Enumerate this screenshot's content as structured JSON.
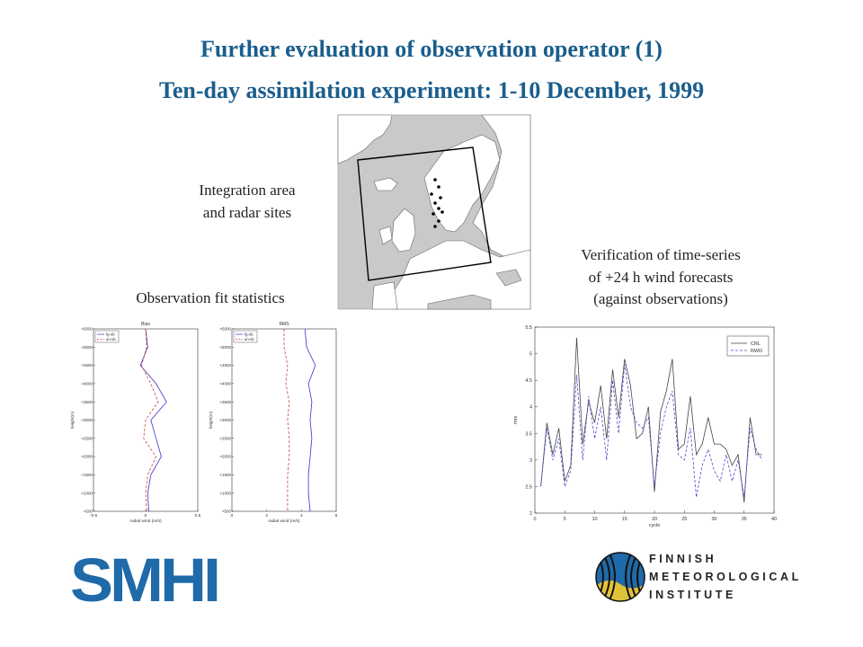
{
  "title_line1": "Further evaluation of observation operator (1)",
  "title_line2": "Ten-day assimilation experiment: 1-10 December, 1999",
  "map_caption": [
    "Integration area",
    "and radar sites"
  ],
  "obs_caption": "Observation fit statistics",
  "verif_caption": [
    "Verification of time-series",
    "of +24 h wind forecasts",
    "(against observations)"
  ],
  "smhi_logo": "SMHI",
  "fmi_logo": [
    "FINNISH",
    "METEOROLOGICAL",
    "INSTITUTE"
  ],
  "colors": {
    "title": "#1a5e8c",
    "smhi": "#1f6aa8",
    "fg_ob": "#3333cc",
    "an_ob": "#d04040"
  },
  "chart_data": [
    {
      "type": "line",
      "title": "Bias",
      "xlabel": "radial wind (m/s)",
      "ylabel": "height(m)",
      "xlim": [
        -0.5,
        0.5
      ],
      "xticks": [
        "-0.5",
        "0",
        "0.5"
      ],
      "yticks": [
        ">5000",
        "<5000",
        "<4500",
        "<4000",
        "<3500",
        "<3000",
        "<2500",
        "<2000",
        "<1500",
        "<1000",
        "<500"
      ],
      "legend": [
        "fg-ob",
        "an-ob"
      ],
      "series": [
        {
          "name": "fg-ob",
          "values": [
            0.0,
            0.02,
            -0.05,
            0.1,
            0.2,
            0.05,
            0.1,
            0.15,
            0.05,
            0.02,
            0.03
          ]
        },
        {
          "name": "an-ob",
          "values": [
            0.0,
            0.01,
            -0.04,
            0.05,
            0.12,
            0.0,
            -0.02,
            0.1,
            0.02,
            0.0,
            0.01
          ]
        }
      ]
    },
    {
      "type": "line",
      "title": "RMS",
      "xlabel": "radial wind (m/s)",
      "ylabel": "height(m)",
      "xlim": [
        0,
        6
      ],
      "xticks": [
        "0",
        "2",
        "4",
        "6"
      ],
      "yticks": [
        ">5000",
        "<5000",
        "<4500",
        "<4000",
        "<3500",
        "<3000",
        "<2500",
        "<2000",
        "<1500",
        "<1000",
        "<500"
      ],
      "legend": [
        "fg-ob",
        "an-ob"
      ],
      "series": [
        {
          "name": "fg-ob",
          "values": [
            4.2,
            4.3,
            4.8,
            4.4,
            4.6,
            4.5,
            4.6,
            4.5,
            4.4,
            4.4,
            4.5
          ]
        },
        {
          "name": "an-ob",
          "values": [
            3.0,
            3.0,
            3.2,
            3.1,
            3.3,
            3.2,
            3.3,
            3.3,
            3.2,
            3.2,
            3.2
          ]
        }
      ]
    },
    {
      "type": "line",
      "title": "",
      "xlabel": "cycle",
      "ylabel": "rms",
      "xlim": [
        0,
        40
      ],
      "ylim": [
        2,
        5.5
      ],
      "xticks": [
        "0",
        "5",
        "10",
        "15",
        "20",
        "25",
        "30",
        "35",
        "40"
      ],
      "yticks": [
        "2",
        "2.5",
        "3",
        "3.5",
        "4",
        "4.5",
        "5",
        "5.5"
      ],
      "legend": [
        "CRL",
        "RWD"
      ],
      "x": [
        1,
        2,
        3,
        4,
        5,
        6,
        7,
        8,
        9,
        10,
        11,
        12,
        13,
        14,
        15,
        16,
        17,
        18,
        19,
        20,
        21,
        22,
        23,
        24,
        25,
        26,
        27,
        28,
        29,
        30,
        31,
        32,
        33,
        34,
        35,
        36,
        37,
        38
      ],
      "series": [
        {
          "name": "CRL",
          "values": [
            2.5,
            3.7,
            3.1,
            3.6,
            2.6,
            2.9,
            5.3,
            3.3,
            4.1,
            3.7,
            4.4,
            3.4,
            4.7,
            3.8,
            4.9,
            4.4,
            3.4,
            3.5,
            4.0,
            2.4,
            3.9,
            4.3,
            4.9,
            3.2,
            3.3,
            4.2,
            3.1,
            3.3,
            3.8,
            3.3,
            3.3,
            3.2,
            2.9,
            3.1,
            2.2,
            3.8,
            3.1,
            3.1
          ]
        },
        {
          "name": "RWD",
          "values": [
            2.5,
            3.6,
            3.0,
            3.4,
            2.5,
            2.8,
            4.6,
            3.0,
            4.2,
            3.4,
            4.0,
            3.0,
            4.5,
            3.5,
            4.8,
            4.0,
            3.7,
            3.6,
            3.8,
            2.5,
            3.5,
            4.0,
            4.3,
            3.1,
            3.0,
            3.6,
            2.3,
            2.9,
            3.2,
            2.8,
            2.6,
            3.1,
            2.6,
            3.0,
            2.3,
            3.6,
            3.2,
            3.0
          ]
        }
      ]
    }
  ]
}
